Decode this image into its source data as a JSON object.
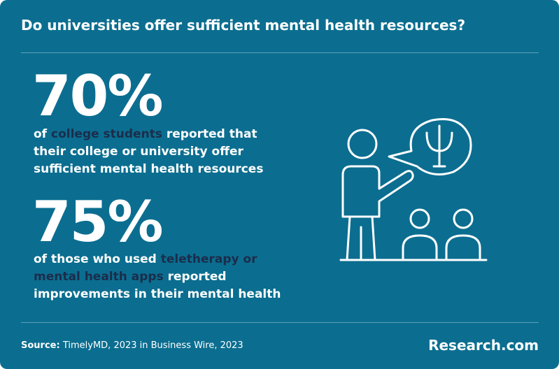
{
  "header": {
    "title": "Do universities offer sufficient mental health resources?"
  },
  "stats": [
    {
      "value": "70%",
      "pre": "of",
      "highlight": "college students",
      "post": "reported that their college or university offer sufficient mental health resources"
    },
    {
      "value": "75%",
      "pre": "of those who used",
      "highlight": "teletherapy or mental health apps",
      "post": "reported improvements in their mental health"
    }
  ],
  "footer": {
    "source_label": "Source:",
    "source": "TimelyMD, 2023 in Business Wire, 2023",
    "brand": "Research.com"
  }
}
